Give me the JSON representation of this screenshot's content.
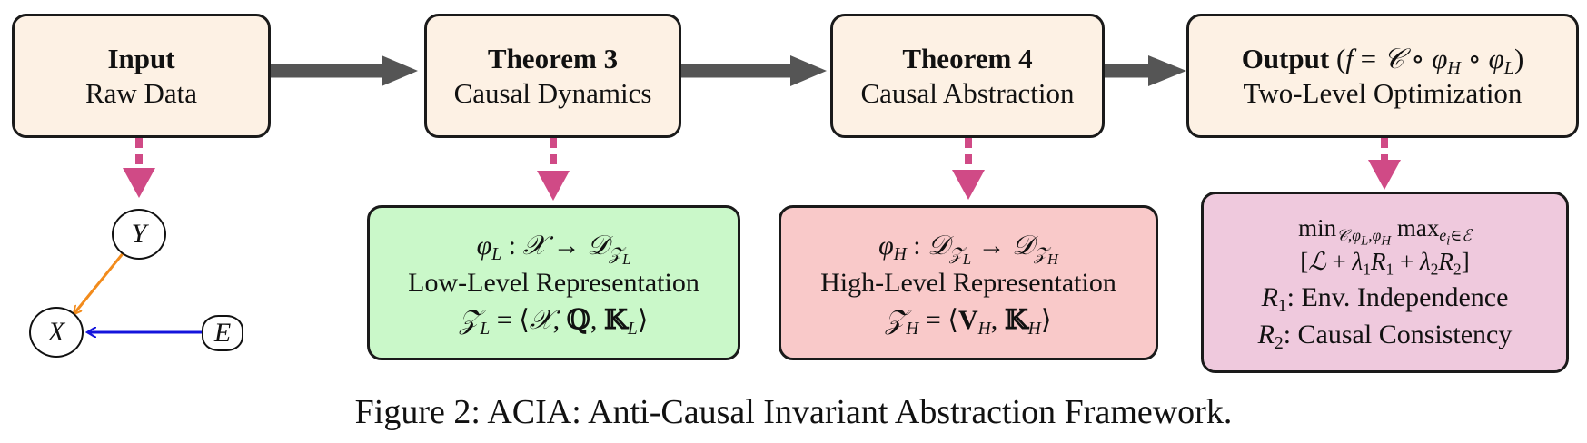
{
  "boxes": {
    "input": {
      "title": "Input",
      "subtitle": "Raw Data"
    },
    "theorem3": {
      "title": "Theorem 3",
      "subtitle": "Causal Dynamics"
    },
    "theorem4": {
      "title": "Theorem 4",
      "subtitle": "Causal Abstraction"
    },
    "output": {
      "title": "Output",
      "formula": "(f = 𝒞 ∘ φ_H ∘ φ_L)",
      "subtitle": "Two-Level Optimization"
    }
  },
  "detail": {
    "low": {
      "map": "φ_L : 𝒳 → 𝒟_{𝒵_L}",
      "label": "Low-Level Representation",
      "def": "𝒵_L = ⟨𝒳, ℚ, 𝕂_L⟩"
    },
    "high": {
      "map": "φ_H : 𝒟_{𝒵_L} → 𝒟_{𝒵_H}",
      "label": "High-Level Representation",
      "def": "𝒵_H = ⟨V_H, 𝕂_H⟩"
    },
    "opt": {
      "objective": "min_{𝒞,φ_L,φ_H} max_{e_i∈ℰ}",
      "loss": "[ℒ + λ_1 R_1 + λ_2 R_2]",
      "r1_label": "Env. Independence",
      "r2_label": "Causal Consistency"
    }
  },
  "graph": {
    "nodes": [
      "Y",
      "X",
      "E"
    ]
  },
  "caption": "Figure 2: ACIA: Anti-Causal Invariant Abstraction Framework.",
  "colors": {
    "top_box": "#fdf1e4",
    "green_box": "#caf8c9",
    "red_box": "#f9c9c9",
    "pink_box": "#efc9dd",
    "flow_arrow": "#555555",
    "dashed_arrow": "#d04a86",
    "y_to_x_edge": "#f28b1c",
    "e_to_x_edge": "#1414dc"
  }
}
